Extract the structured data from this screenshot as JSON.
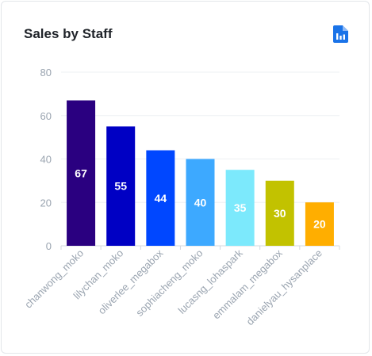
{
  "widget": {
    "title": "Sales by Staff",
    "report_icon": "report-document-icon",
    "accent": "#1a73e8"
  },
  "chart_data": {
    "type": "bar",
    "title": "Sales by Staff",
    "xlabel": "",
    "ylabel": "",
    "ylim": [
      0,
      80
    ],
    "yticks": [
      0,
      20,
      40,
      60,
      80
    ],
    "grid": true,
    "legend": "none",
    "categories": [
      "chanwong_moko",
      "lilychan_moko",
      "oliverlee_megabox",
      "sophiacheng_moko",
      "lucasng_lohaspark",
      "emmalam_megabox",
      "danielyau_hysanplace"
    ],
    "values": [
      67,
      55,
      44,
      40,
      35,
      30,
      20
    ],
    "colors": [
      "#2a0080",
      "#0000c4",
      "#0047ff",
      "#3da9ff",
      "#7ce9fc",
      "#c2c200",
      "#ffae00"
    ]
  }
}
